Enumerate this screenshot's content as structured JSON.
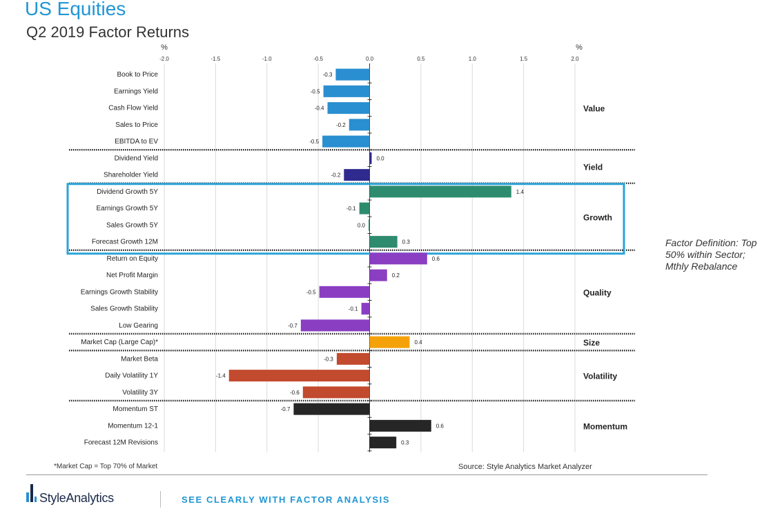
{
  "header": {
    "title": "US Equities",
    "subtitle": "Q2 2019 Factor Returns"
  },
  "note": "Factor Definition: Top 50% within Sector; Mthly Rebalance",
  "footer": {
    "footnote": "*Market Cap = Top 70% of Market",
    "source": "Source: Style Analytics Market Analyzer",
    "logo_text": "StyleAnalytics",
    "tagline": "SEE CLEARLY WITH FACTOR ANALYSIS"
  },
  "chart_data": {
    "type": "bar",
    "orientation": "horizontal",
    "title": "Q2 2019 Factor Returns",
    "xlabel": "%",
    "xlim": [
      -2.0,
      2.0
    ],
    "ticks": [
      -2.0,
      -1.5,
      -1.0,
      -0.5,
      0.0,
      0.5,
      1.0,
      1.5,
      2.0
    ],
    "tick_labels": [
      "-2.0",
      "-1.5",
      "-1.0",
      "-0.5",
      "0.0",
      "0.5",
      "1.0",
      "1.5",
      "2.0"
    ],
    "highlighted_group": "Growth",
    "colors": {
      "Value": "#2a8fd0",
      "Yield": "#2e2a8e",
      "Growth": "#2e8c6e",
      "Quality": "#8a3fc2",
      "Size": "#f5a20a",
      "Volatility": "#c24a2e",
      "Momentum": "#262626",
      "highlight": "#2aa3d8"
    },
    "groups": [
      {
        "name": "Value",
        "factors": [
          {
            "label": "Book to Price",
            "value": -0.33,
            "value_label": "-0.3"
          },
          {
            "label": "Earnings Yield",
            "value": -0.45,
            "value_label": "-0.5"
          },
          {
            "label": "Cash Flow Yield",
            "value": -0.41,
            "value_label": "-0.4"
          },
          {
            "label": "Sales to Price",
            "value": -0.2,
            "value_label": "-0.2"
          },
          {
            "label": "EBITDA to EV",
            "value": -0.46,
            "value_label": "-0.5"
          }
        ]
      },
      {
        "name": "Yield",
        "factors": [
          {
            "label": "Dividend Yield",
            "value": 0.02,
            "value_label": "0.0"
          },
          {
            "label": "Shareholder Yield",
            "value": -0.25,
            "value_label": "-0.2"
          }
        ]
      },
      {
        "name": "Growth",
        "factors": [
          {
            "label": "Dividend Growth 5Y",
            "value": 1.38,
            "value_label": "1.4"
          },
          {
            "label": "Earnings Growth 5Y",
            "value": -0.1,
            "value_label": "-0.1"
          },
          {
            "label": "Sales Growth 5Y",
            "value": -0.01,
            "value_label": "0.0"
          },
          {
            "label": "Forecast Growth 12M",
            "value": 0.27,
            "value_label": "0.3"
          }
        ]
      },
      {
        "name": "Quality",
        "factors": [
          {
            "label": "Return on Equity",
            "value": 0.56,
            "value_label": "0.6"
          },
          {
            "label": "Net Profit Margin",
            "value": 0.17,
            "value_label": "0.2"
          },
          {
            "label": "Earnings Growth Stability",
            "value": -0.49,
            "value_label": "-0.5"
          },
          {
            "label": "Sales Growth Stability",
            "value": -0.08,
            "value_label": "-0.1"
          },
          {
            "label": "Low Gearing",
            "value": -0.67,
            "value_label": "-0.7"
          }
        ]
      },
      {
        "name": "Size",
        "factors": [
          {
            "label": "Market Cap (Large Cap)*",
            "value": 0.39,
            "value_label": "0.4"
          }
        ]
      },
      {
        "name": "Volatility",
        "factors": [
          {
            "label": "Market Beta",
            "value": -0.32,
            "value_label": "-0.3"
          },
          {
            "label": "Daily Volatility 1Y",
            "value": -1.37,
            "value_label": "-1.4"
          },
          {
            "label": "Volatility 3Y",
            "value": -0.65,
            "value_label": "-0.6"
          }
        ]
      },
      {
        "name": "Momentum",
        "factors": [
          {
            "label": "Momentum ST",
            "value": -0.74,
            "value_label": "-0.7"
          },
          {
            "label": "Momentum 12-1",
            "value": 0.6,
            "value_label": "0.6"
          },
          {
            "label": "Forecast 12M Revisions",
            "value": 0.26,
            "value_label": "0.3"
          }
        ]
      }
    ]
  }
}
